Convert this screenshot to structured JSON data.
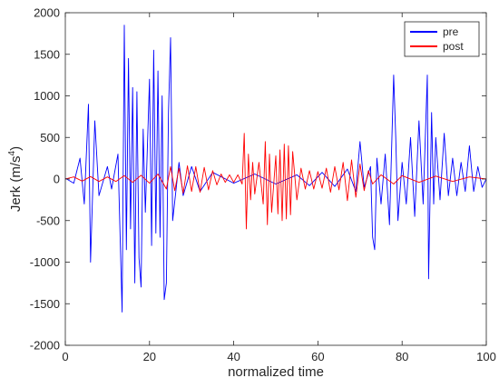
{
  "chart_data": {
    "type": "line",
    "title": "",
    "xlabel": "normalized time",
    "ylabel_main": "Jerk (m/s",
    "ylabel_sup": "4",
    "ylabel_close": ")",
    "xlim": [
      0,
      100
    ],
    "ylim": [
      -2000,
      2000
    ],
    "x_ticks": [
      0,
      20,
      40,
      60,
      80,
      100
    ],
    "x_tick_labels": [
      "0",
      "20",
      "40",
      "60",
      "80",
      "100"
    ],
    "y_ticks": [
      -2000,
      -1500,
      -1000,
      -500,
      0,
      500,
      1000,
      1500,
      2000
    ],
    "y_tick_labels": [
      "-2000",
      "-1500",
      "-1000",
      "-500",
      "0",
      "500",
      "1000",
      "1500",
      "2000"
    ],
    "grid": false,
    "legend_position": "top-right",
    "series": [
      {
        "name": "pre",
        "color": "#0000ff",
        "points": [
          [
            0,
            10
          ],
          [
            2,
            -50
          ],
          [
            3.5,
            250
          ],
          [
            4.5,
            -300
          ],
          [
            5.5,
            900
          ],
          [
            6,
            -1000
          ],
          [
            7,
            700
          ],
          [
            8,
            -200
          ],
          [
            10,
            150
          ],
          [
            11,
            -120
          ],
          [
            12.5,
            300
          ],
          [
            13.5,
            -1600
          ],
          [
            14,
            1850
          ],
          [
            14.5,
            -850
          ],
          [
            15,
            1450
          ],
          [
            15.5,
            -600
          ],
          [
            16,
            1100
          ],
          [
            16.5,
            -1250
          ],
          [
            17,
            1050
          ],
          [
            17.5,
            -950
          ],
          [
            18,
            -1300
          ],
          [
            18.5,
            600
          ],
          [
            19,
            -400
          ],
          [
            20,
            1200
          ],
          [
            20.5,
            -800
          ],
          [
            21,
            1550
          ],
          [
            21.5,
            -650
          ],
          [
            22,
            1300
          ],
          [
            22.5,
            -700
          ],
          [
            23,
            1000
          ],
          [
            23.5,
            -1450
          ],
          [
            24,
            -1250
          ],
          [
            24.5,
            800
          ],
          [
            25,
            1700
          ],
          [
            25.5,
            -500
          ],
          [
            27,
            200
          ],
          [
            28,
            -200
          ],
          [
            30,
            150
          ],
          [
            32,
            -150
          ],
          [
            35,
            80
          ],
          [
            40,
            -50
          ],
          [
            45,
            60
          ],
          [
            50,
            -60
          ],
          [
            55,
            50
          ],
          [
            58,
            -80
          ],
          [
            61,
            80
          ],
          [
            64,
            -90
          ],
          [
            67,
            120
          ],
          [
            69,
            -150
          ],
          [
            70,
            450
          ],
          [
            71,
            -100
          ],
          [
            72.5,
            150
          ],
          [
            73,
            -700
          ],
          [
            73.5,
            -850
          ],
          [
            74,
            250
          ],
          [
            75,
            -300
          ],
          [
            76,
            300
          ],
          [
            77,
            -550
          ],
          [
            78,
            1250
          ],
          [
            78.5,
            500
          ],
          [
            79,
            -500
          ],
          [
            80,
            200
          ],
          [
            81,
            -300
          ],
          [
            82,
            500
          ],
          [
            83,
            -450
          ],
          [
            84,
            700
          ],
          [
            85,
            -300
          ],
          [
            86,
            1250
          ],
          [
            86.3,
            -1200
          ],
          [
            87,
            800
          ],
          [
            87.5,
            -300
          ],
          [
            88,
            500
          ],
          [
            89,
            -250
          ],
          [
            90,
            550
          ],
          [
            91,
            -200
          ],
          [
            92,
            250
          ],
          [
            93,
            -200
          ],
          [
            94,
            200
          ],
          [
            95,
            -150
          ],
          [
            96,
            400
          ],
          [
            97,
            -150
          ],
          [
            98,
            150
          ],
          [
            99,
            -100
          ],
          [
            100,
            0
          ]
        ]
      },
      {
        "name": "post",
        "color": "#ff0000",
        "points": [
          [
            0,
            0
          ],
          [
            2,
            25
          ],
          [
            4,
            -25
          ],
          [
            6,
            30
          ],
          [
            8,
            -30
          ],
          [
            10,
            25
          ],
          [
            12,
            -30
          ],
          [
            14,
            40
          ],
          [
            16,
            -40
          ],
          [
            18,
            45
          ],
          [
            20,
            -50
          ],
          [
            22,
            60
          ],
          [
            24,
            -120
          ],
          [
            25,
            150
          ],
          [
            26,
            -140
          ],
          [
            27,
            130
          ],
          [
            28,
            -170
          ],
          [
            29,
            160
          ],
          [
            30,
            -150
          ],
          [
            31,
            150
          ],
          [
            32,
            -160
          ],
          [
            33,
            140
          ],
          [
            34,
            -130
          ],
          [
            35,
            100
          ],
          [
            36,
            -70
          ],
          [
            37,
            60
          ],
          [
            38,
            -40
          ],
          [
            39,
            50
          ],
          [
            40,
            -40
          ],
          [
            41,
            50
          ],
          [
            42,
            -60
          ],
          [
            42.5,
            550
          ],
          [
            43,
            -600
          ],
          [
            43.5,
            300
          ],
          [
            44,
            -250
          ],
          [
            44.5,
            200
          ],
          [
            45,
            -180
          ],
          [
            46,
            200
          ],
          [
            47,
            -300
          ],
          [
            47.5,
            450
          ],
          [
            48,
            -550
          ],
          [
            48.5,
            300
          ],
          [
            49,
            -400
          ],
          [
            50,
            280
          ],
          [
            50.5,
            -420
          ],
          [
            51,
            350
          ],
          [
            51.5,
            -500
          ],
          [
            52,
            420
          ],
          [
            52.5,
            -480
          ],
          [
            53,
            400
          ],
          [
            53.5,
            -430
          ],
          [
            54,
            330
          ],
          [
            55,
            -250
          ],
          [
            56,
            130
          ],
          [
            57,
            -120
          ],
          [
            58,
            100
          ],
          [
            59,
            -120
          ],
          [
            60,
            90
          ],
          [
            61,
            -110
          ],
          [
            62,
            130
          ],
          [
            63,
            -160
          ],
          [
            64,
            150
          ],
          [
            65,
            -130
          ],
          [
            66,
            200
          ],
          [
            67,
            -260
          ],
          [
            68,
            230
          ],
          [
            69,
            -220
          ],
          [
            70,
            180
          ],
          [
            71,
            -140
          ],
          [
            72,
            100
          ],
          [
            73,
            -60
          ],
          [
            75,
            50
          ],
          [
            78,
            -60
          ],
          [
            80,
            40
          ],
          [
            84,
            -40
          ],
          [
            88,
            35
          ],
          [
            92,
            -30
          ],
          [
            96,
            25
          ],
          [
            100,
            0
          ]
        ]
      }
    ]
  }
}
